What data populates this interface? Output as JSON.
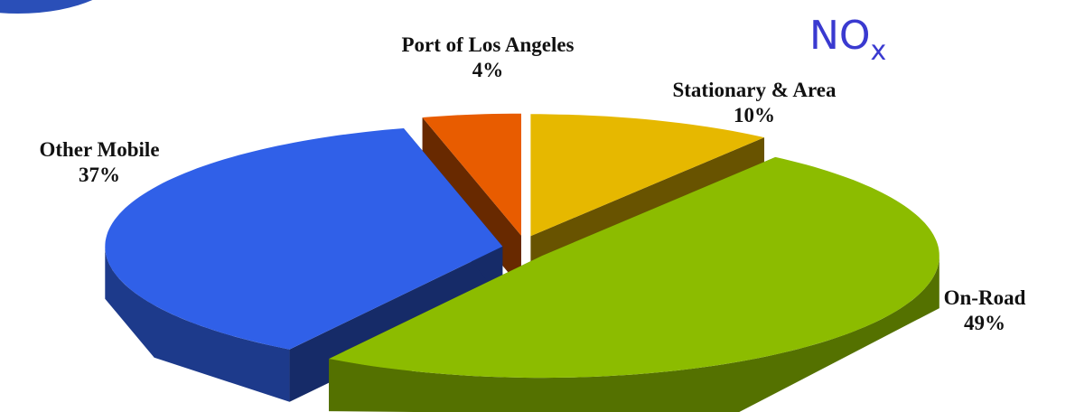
{
  "chart_data": {
    "type": "pie3d",
    "title_parts": [
      "NO",
      "x"
    ],
    "categories": [
      "Stationary & Area",
      "On-Road",
      "Other Mobile",
      "Port of Los Angeles"
    ],
    "values": [
      10,
      49,
      37,
      4
    ],
    "value_labels": [
      "10%",
      "49%",
      "37%",
      "4%"
    ],
    "colors": [
      "#e6b800",
      "#8cbc00",
      "#3060e8",
      "#e85c00"
    ]
  }
}
